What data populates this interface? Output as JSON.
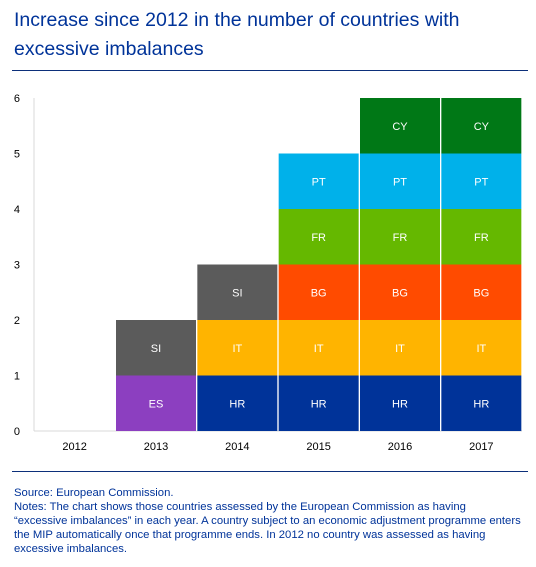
{
  "title": "Increase since 2012 in the number of countries with excessive imbalances",
  "source": "Source: European Commission.",
  "notes": "Notes: The chart shows those countries assessed by the European Commission as having “excessive imbalances” in each year. A country subject to an economic adjustment programme enters the MIP automatically once that programme ends. In 2012 no country was assessed as having excessive imbalances.",
  "colors": {
    "HR": "#003399",
    "ES": "#8c3fc0",
    "SI": "#5b5b5b",
    "IT": "#ffb400",
    "BG": "#ff4b00",
    "FR": "#65b800",
    "PT": "#00b1ea",
    "CY": "#007816"
  },
  "chart_data": {
    "type": "bar",
    "stacked": true,
    "categories": [
      "2012",
      "2013",
      "2014",
      "2015",
      "2016",
      "2017"
    ],
    "ylim": [
      0,
      6
    ],
    "yticks": [
      0,
      1,
      2,
      3,
      4,
      5,
      6
    ],
    "grid": false,
    "stacks": [
      [],
      [
        "ES",
        "SI"
      ],
      [
        "HR",
        "IT",
        "SI"
      ],
      [
        "HR",
        "IT",
        "BG",
        "FR",
        "PT"
      ],
      [
        "HR",
        "IT",
        "BG",
        "FR",
        "PT",
        "CY"
      ],
      [
        "HR",
        "IT",
        "BG",
        "FR",
        "PT",
        "CY"
      ]
    ],
    "values": [
      0,
      2,
      3,
      5,
      6,
      6
    ]
  }
}
